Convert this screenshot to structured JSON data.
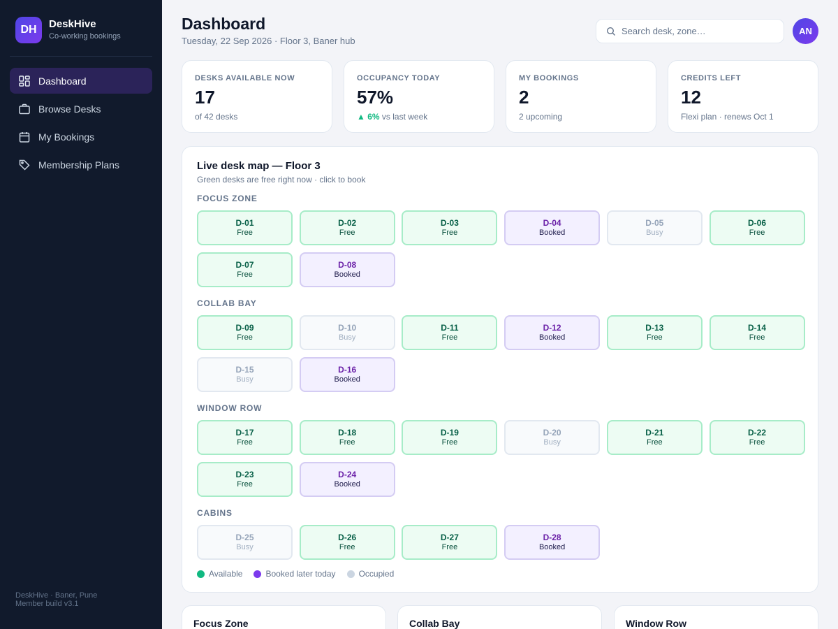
{
  "brand": {
    "logo": "DH",
    "name": "DeskHive",
    "tagline": "Co-working bookings"
  },
  "nav": [
    {
      "label": "Dashboard",
      "icon": "dashboard-icon",
      "active": true
    },
    {
      "label": "Browse Desks",
      "icon": "briefcase-icon",
      "active": false
    },
    {
      "label": "My Bookings",
      "icon": "calendar-icon",
      "active": false
    },
    {
      "label": "Membership Plans",
      "icon": "tag-icon",
      "active": false
    }
  ],
  "sidebar_footer": {
    "line1": "DeskHive · Baner, Pune",
    "line2": "Member build v3.1"
  },
  "header": {
    "title": "Dashboard",
    "subtitle": "Tuesday, 22 Sep 2026 · Floor 3, Baner hub",
    "search_placeholder": "Search desk, zone…",
    "avatar_initials": "AN"
  },
  "stats": [
    {
      "label": "DESKS AVAILABLE NOW",
      "value": "17",
      "note": "of 42 desks",
      "trend": ""
    },
    {
      "label": "OCCUPANCY TODAY",
      "value": "57%",
      "trend": "▲ 6%",
      "note": "vs last week"
    },
    {
      "label": "MY BOOKINGS",
      "value": "2",
      "note": "2 upcoming",
      "trend": ""
    },
    {
      "label": "CREDITS LEFT",
      "value": "12",
      "note": "Flexi plan · renews Oct 1",
      "trend": ""
    }
  ],
  "map": {
    "title": "Live desk map — Floor 3",
    "subtitle": "Green desks are free right now · click to book",
    "zones": [
      {
        "name": "FOCUS ZONE",
        "desks": [
          {
            "id": "D-01",
            "status": "Free"
          },
          {
            "id": "D-02",
            "status": "Free"
          },
          {
            "id": "D-03",
            "status": "Free"
          },
          {
            "id": "D-04",
            "status": "Booked"
          },
          {
            "id": "D-05",
            "status": "Busy"
          },
          {
            "id": "D-06",
            "status": "Free"
          },
          {
            "id": "D-07",
            "status": "Free"
          },
          {
            "id": "D-08",
            "status": "Booked"
          }
        ]
      },
      {
        "name": "COLLAB BAY",
        "desks": [
          {
            "id": "D-09",
            "status": "Free"
          },
          {
            "id": "D-10",
            "status": "Busy"
          },
          {
            "id": "D-11",
            "status": "Free"
          },
          {
            "id": "D-12",
            "status": "Booked"
          },
          {
            "id": "D-13",
            "status": "Free"
          },
          {
            "id": "D-14",
            "status": "Free"
          },
          {
            "id": "D-15",
            "status": "Busy"
          },
          {
            "id": "D-16",
            "status": "Booked"
          }
        ]
      },
      {
        "name": "WINDOW ROW",
        "desks": [
          {
            "id": "D-17",
            "status": "Free"
          },
          {
            "id": "D-18",
            "status": "Free"
          },
          {
            "id": "D-19",
            "status": "Free"
          },
          {
            "id": "D-20",
            "status": "Busy"
          },
          {
            "id": "D-21",
            "status": "Free"
          },
          {
            "id": "D-22",
            "status": "Free"
          },
          {
            "id": "D-23",
            "status": "Free"
          },
          {
            "id": "D-24",
            "status": "Booked"
          }
        ]
      },
      {
        "name": "CABINS",
        "desks": [
          {
            "id": "D-25",
            "status": "Busy"
          },
          {
            "id": "D-26",
            "status": "Free"
          },
          {
            "id": "D-27",
            "status": "Free"
          },
          {
            "id": "D-28",
            "status": "Booked"
          }
        ]
      }
    ],
    "legend": [
      {
        "label": "Available",
        "color": "#10b981"
      },
      {
        "label": "Booked later today",
        "color": "#7c3aed"
      },
      {
        "label": "Occupied",
        "color": "#cbd5e1"
      }
    ]
  },
  "zone_cards": [
    "Focus Zone",
    "Collab Bay",
    "Window Row"
  ],
  "colors": {
    "accent": "#4f46e5",
    "accent_2": "#7c3aed",
    "free": "#10b981",
    "sidebar": "#111a2c"
  }
}
